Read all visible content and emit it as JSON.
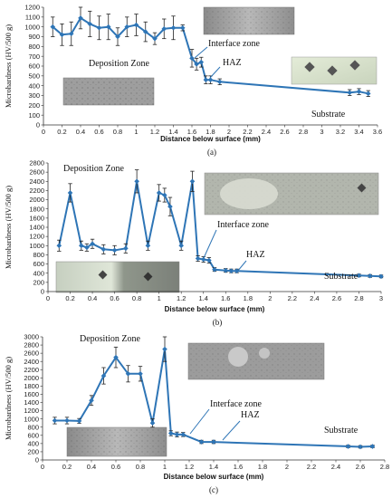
{
  "chart_data": [
    {
      "type": "line",
      "panel_label": "(a)",
      "xlabel": "Distance below surface (mm)",
      "ylabel": "Microhardness (HV/500 g)",
      "xlim": [
        0,
        3.6
      ],
      "ylim": [
        0,
        1200
      ],
      "xticks": [
        0,
        0.2,
        0.4,
        0.6,
        0.8,
        1,
        1.2,
        1.4,
        1.6,
        1.8,
        2,
        2.2,
        2.4,
        2.6,
        2.8,
        3,
        3.2,
        3.4,
        3.6
      ],
      "yticks": [
        0,
        100,
        200,
        300,
        400,
        500,
        600,
        700,
        800,
        900,
        1000,
        1100,
        1200
      ],
      "x_tick_labels": [
        "0",
        "0.2",
        "0.4",
        "0.6",
        "0.8",
        "1",
        "1.2",
        "1.4",
        "1.6",
        "1.8",
        "2",
        "2.2",
        "2.4",
        "2.6",
        "2.8",
        "3",
        "3.2",
        "3.4",
        "3.6"
      ],
      "y_tick_labels": [
        "0",
        "100",
        "200",
        "300",
        "400",
        "500",
        "600",
        "700",
        "800",
        "900",
        "1000",
        "1100",
        "1200"
      ],
      "series": [
        {
          "color": "#2e75b6",
          "points": [
            {
              "x": 0.1,
              "y": 1000,
              "err": 100
            },
            {
              "x": 0.2,
              "y": 920,
              "err": 110
            },
            {
              "x": 0.3,
              "y": 930,
              "err": 120
            },
            {
              "x": 0.4,
              "y": 1090,
              "err": 110
            },
            {
              "x": 0.5,
              "y": 1030,
              "err": 130
            },
            {
              "x": 0.6,
              "y": 990,
              "err": 120
            },
            {
              "x": 0.7,
              "y": 1000,
              "err": 130
            },
            {
              "x": 0.8,
              "y": 900,
              "err": 90
            },
            {
              "x": 0.9,
              "y": 1000,
              "err": 100
            },
            {
              "x": 1.0,
              "y": 1020,
              "err": 110
            },
            {
              "x": 1.1,
              "y": 950,
              "err": 100
            },
            {
              "x": 1.2,
              "y": 880,
              "err": 60
            },
            {
              "x": 1.3,
              "y": 980,
              "err": 100
            },
            {
              "x": 1.4,
              "y": 990,
              "err": 120
            },
            {
              "x": 1.5,
              "y": 990,
              "err": 30
            },
            {
              "x": 1.6,
              "y": 680,
              "err": 90
            },
            {
              "x": 1.65,
              "y": 620,
              "err": 60
            },
            {
              "x": 1.7,
              "y": 640,
              "err": 50
            },
            {
              "x": 1.75,
              "y": 460,
              "err": 40
            },
            {
              "x": 1.8,
              "y": 460,
              "err": 40
            },
            {
              "x": 1.9,
              "y": 440,
              "err": 30
            },
            {
              "x": 3.3,
              "y": 330,
              "err": 30
            },
            {
              "x": 3.4,
              "y": 340,
              "err": 30
            },
            {
              "x": 3.5,
              "y": 320,
              "err": 30
            }
          ]
        }
      ],
      "annotations": [
        "Deposition Zone",
        "Interface zone",
        "HAZ",
        "Substrate"
      ]
    },
    {
      "type": "line",
      "panel_label": "(b)",
      "xlabel": "Distance below surface (mm)",
      "ylabel": "Microhardness (HV/500 g)",
      "xlim": [
        0,
        3
      ],
      "ylim": [
        0,
        2800
      ],
      "xticks": [
        0,
        0.2,
        0.4,
        0.6,
        0.8,
        1,
        1.2,
        1.4,
        1.6,
        1.8,
        2,
        2.2,
        2.4,
        2.6,
        2.8,
        3
      ],
      "yticks": [
        0,
        200,
        400,
        600,
        800,
        1000,
        1200,
        1400,
        1600,
        1800,
        2000,
        2200,
        2400,
        2600,
        2800
      ],
      "x_tick_labels": [
        "0",
        "0.2",
        "0.4",
        "0.6",
        "0.8",
        "1",
        "1.2",
        "1.4",
        "1.6",
        "1.8",
        "2",
        "2.2",
        "2.4",
        "2.6",
        "2.8",
        "3"
      ],
      "y_tick_labels": [
        "0",
        "200",
        "400",
        "600",
        "800",
        "1000",
        "1200",
        "1400",
        "1600",
        "1800",
        "2000",
        "2200",
        "2400",
        "2600",
        "2800"
      ],
      "series": [
        {
          "color": "#2e75b6",
          "points": [
            {
              "x": 0.1,
              "y": 1000,
              "err": 120
            },
            {
              "x": 0.2,
              "y": 2150,
              "err": 200
            },
            {
              "x": 0.3,
              "y": 1000,
              "err": 100
            },
            {
              "x": 0.35,
              "y": 960,
              "err": 80
            },
            {
              "x": 0.4,
              "y": 1040,
              "err": 100
            },
            {
              "x": 0.5,
              "y": 920,
              "err": 100
            },
            {
              "x": 0.6,
              "y": 900,
              "err": 100
            },
            {
              "x": 0.7,
              "y": 940,
              "err": 100
            },
            {
              "x": 0.8,
              "y": 2400,
              "err": 250
            },
            {
              "x": 0.9,
              "y": 1000,
              "err": 100
            },
            {
              "x": 1.0,
              "y": 2150,
              "err": 180
            },
            {
              "x": 1.05,
              "y": 2100,
              "err": 150
            },
            {
              "x": 1.1,
              "y": 1850,
              "err": 200
            },
            {
              "x": 1.2,
              "y": 1000,
              "err": 100
            },
            {
              "x": 1.3,
              "y": 2400,
              "err": 220
            },
            {
              "x": 1.35,
              "y": 720,
              "err": 60
            },
            {
              "x": 1.4,
              "y": 700,
              "err": 60
            },
            {
              "x": 1.45,
              "y": 680,
              "err": 60
            },
            {
              "x": 1.5,
              "y": 480,
              "err": 40
            },
            {
              "x": 1.6,
              "y": 460,
              "err": 40
            },
            {
              "x": 1.65,
              "y": 450,
              "err": 40
            },
            {
              "x": 1.7,
              "y": 450,
              "err": 40
            },
            {
              "x": 2.8,
              "y": 350,
              "err": 30
            },
            {
              "x": 2.9,
              "y": 340,
              "err": 30
            },
            {
              "x": 3.0,
              "y": 330,
              "err": 30
            }
          ]
        }
      ],
      "annotations": [
        "Deposition Zone",
        "Interface zone",
        "HAZ",
        "Substrate"
      ]
    },
    {
      "type": "line",
      "panel_label": "(c)",
      "xlabel": "Distance below surface (mm)",
      "ylabel": "Microhardness (HV/500 g)",
      "xlim": [
        0,
        2.8
      ],
      "ylim": [
        0,
        3000
      ],
      "xticks": [
        0,
        0.2,
        0.4,
        0.6,
        0.8,
        1,
        1.2,
        1.4,
        1.6,
        1.8,
        2,
        2.2,
        2.4,
        2.6,
        2.8
      ],
      "yticks": [
        0,
        200,
        400,
        600,
        800,
        1000,
        1200,
        1400,
        1600,
        1800,
        2000,
        2200,
        2400,
        2600,
        2800,
        3000
      ],
      "x_tick_labels": [
        "0",
        "0.2",
        "0.4",
        "0.6",
        "0.8",
        "1",
        "1.2",
        "1.4",
        "1.6",
        "1.8",
        "2",
        "2.2",
        "2.4",
        "2.6",
        "2.8"
      ],
      "y_tick_labels": [
        "0",
        "200",
        "400",
        "600",
        "800",
        "1000",
        "1200",
        "1400",
        "1600",
        "1800",
        "2000",
        "2200",
        "2400",
        "2600",
        "2800",
        "3000"
      ],
      "series": [
        {
          "color": "#2e75b6",
          "points": [
            {
              "x": 0.1,
              "y": 960,
              "err": 80
            },
            {
              "x": 0.2,
              "y": 960,
              "err": 80
            },
            {
              "x": 0.3,
              "y": 950,
              "err": 60
            },
            {
              "x": 0.4,
              "y": 1450,
              "err": 120
            },
            {
              "x": 0.5,
              "y": 2050,
              "err": 200
            },
            {
              "x": 0.6,
              "y": 2500,
              "err": 250
            },
            {
              "x": 0.7,
              "y": 2100,
              "err": 200
            },
            {
              "x": 0.8,
              "y": 2100,
              "err": 180
            },
            {
              "x": 0.9,
              "y": 900,
              "err": 100
            },
            {
              "x": 1.0,
              "y": 2700,
              "err": 300
            },
            {
              "x": 1.05,
              "y": 650,
              "err": 60
            },
            {
              "x": 1.1,
              "y": 620,
              "err": 60
            },
            {
              "x": 1.15,
              "y": 620,
              "err": 50
            },
            {
              "x": 1.3,
              "y": 440,
              "err": 40
            },
            {
              "x": 1.4,
              "y": 440,
              "err": 40
            },
            {
              "x": 2.5,
              "y": 330,
              "err": 30
            },
            {
              "x": 2.6,
              "y": 320,
              "err": 30
            },
            {
              "x": 2.7,
              "y": 330,
              "err": 30
            }
          ]
        }
      ],
      "annotations": [
        "Deposition Zone",
        "Interface zone",
        "HAZ",
        "Substrate"
      ]
    }
  ]
}
